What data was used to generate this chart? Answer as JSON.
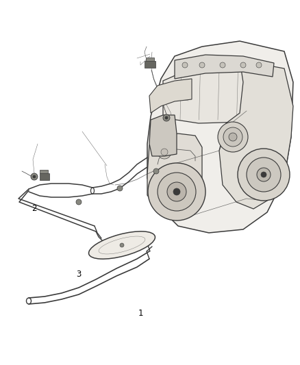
{
  "background_color": "#ffffff",
  "fig_width": 4.38,
  "fig_height": 5.33,
  "dpi": 100,
  "label_fontsize": 8.5,
  "label_color": "#000000",
  "line_color": "#3a3a3a",
  "light_line_color": "#555555",
  "lw_main": 1.0,
  "lw_thin": 0.5,
  "lw_thick": 1.6,
  "labels": {
    "1": [
      0.468,
      0.858
    ],
    "2": [
      0.115,
      0.572
    ],
    "3": [
      0.262,
      0.752
    ]
  }
}
